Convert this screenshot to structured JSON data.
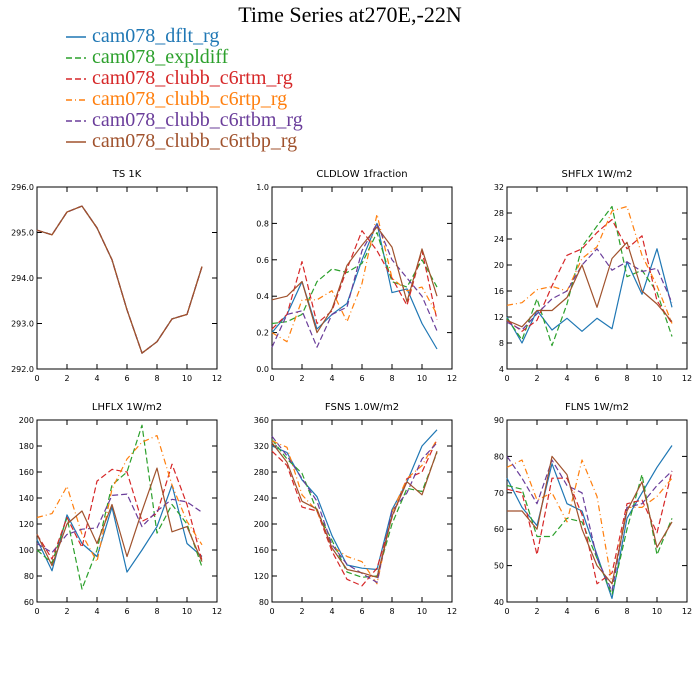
{
  "title": "Time Series at270E,-22N",
  "legend": [
    {
      "name": "cam078_dflt_rg",
      "color": "#1f77b4",
      "dash": ""
    },
    {
      "name": "cam078_expldiff",
      "color": "#2ca02c",
      "dash": "6,3"
    },
    {
      "name": "cam078_clubb_c6rtm_rg",
      "color": "#d62728",
      "dash": "6,3"
    },
    {
      "name": "cam078_clubb_c6rtp_rg",
      "color": "#ff7f0e",
      "dash": "6,3,1,3"
    },
    {
      "name": "cam078_clubb_c6rtbm_rg",
      "color": "#6a3d9a",
      "dash": "6,3"
    },
    {
      "name": "cam078_clubb_c6rtbp_rg",
      "color": "#a0522d",
      "dash": ""
    }
  ],
  "chart_data": [
    {
      "type": "line",
      "title": "TS   1K",
      "x": [
        0,
        1,
        2,
        3,
        4,
        5,
        6,
        7,
        8,
        9,
        10,
        11
      ],
      "xlim": [
        0,
        12
      ],
      "xticks": [
        0,
        2,
        4,
        6,
        8,
        10,
        12
      ],
      "ylim": [
        292.0,
        296.0
      ],
      "yticks": [
        "292.0",
        "293.0",
        "294.0",
        "295.0",
        "296.0"
      ],
      "series": [
        {
          "name": "cam078_dflt_rg",
          "values": [
            295.05,
            294.95,
            295.45,
            295.58,
            295.1,
            294.4,
            293.3,
            292.35,
            292.6,
            293.1,
            293.2,
            294.25
          ]
        },
        {
          "name": "cam078_expldiff",
          "values": [
            295.05,
            294.95,
            295.45,
            295.58,
            295.1,
            294.4,
            293.3,
            292.35,
            292.6,
            293.1,
            293.2,
            294.25
          ]
        },
        {
          "name": "cam078_clubb_c6rtm_rg",
          "values": [
            295.05,
            294.95,
            295.45,
            295.58,
            295.1,
            294.4,
            293.3,
            292.35,
            292.6,
            293.1,
            293.2,
            294.25
          ]
        },
        {
          "name": "cam078_clubb_c6rtp_rg",
          "values": [
            295.05,
            294.95,
            295.45,
            295.58,
            295.1,
            294.4,
            293.3,
            292.35,
            292.6,
            293.1,
            293.2,
            294.25
          ]
        },
        {
          "name": "cam078_clubb_c6rtbm_rg",
          "values": [
            295.05,
            294.95,
            295.45,
            295.58,
            295.1,
            294.4,
            293.3,
            292.35,
            292.6,
            293.1,
            293.2,
            294.25
          ]
        },
        {
          "name": "cam078_clubb_c6rtbp_rg",
          "values": [
            295.05,
            294.95,
            295.45,
            295.58,
            295.1,
            294.4,
            293.3,
            292.35,
            292.6,
            293.1,
            293.2,
            294.25
          ]
        }
      ]
    },
    {
      "type": "line",
      "title": "CLDLOW   1fraction",
      "x": [
        0,
        1,
        2,
        3,
        4,
        5,
        6,
        7,
        8,
        9,
        10,
        11
      ],
      "xlim": [
        0,
        12
      ],
      "xticks": [
        0,
        2,
        4,
        6,
        8,
        10,
        12
      ],
      "ylim": [
        0.0,
        1.0
      ],
      "yticks": [
        "0.0",
        "0.2",
        "0.4",
        "0.6",
        "0.8",
        "1.0"
      ],
      "series": [
        {
          "name": "cam078_dflt_rg",
          "values": [
            0.2,
            0.3,
            0.48,
            0.22,
            0.3,
            0.36,
            0.6,
            0.8,
            0.42,
            0.44,
            0.25,
            0.11
          ]
        },
        {
          "name": "cam078_expldiff",
          "values": [
            0.25,
            0.26,
            0.3,
            0.48,
            0.55,
            0.53,
            0.58,
            0.75,
            0.48,
            0.45,
            0.6,
            0.45
          ]
        },
        {
          "name": "cam078_clubb_c6rtm_rg",
          "values": [
            0.22,
            0.3,
            0.59,
            0.25,
            0.32,
            0.55,
            0.76,
            0.65,
            0.5,
            0.35,
            0.65,
            0.27
          ]
        },
        {
          "name": "cam078_clubb_c6rtp_rg",
          "values": [
            0.2,
            0.15,
            0.38,
            0.38,
            0.43,
            0.26,
            0.47,
            0.85,
            0.5,
            0.43,
            0.45,
            0.3
          ]
        },
        {
          "name": "cam078_clubb_c6rtbm_rg",
          "values": [
            0.12,
            0.3,
            0.32,
            0.12,
            0.3,
            0.34,
            0.65,
            0.8,
            0.6,
            0.5,
            0.4,
            0.21
          ]
        },
        {
          "name": "cam078_clubb_c6rtbp_rg",
          "values": [
            0.38,
            0.4,
            0.48,
            0.2,
            0.33,
            0.57,
            0.68,
            0.78,
            0.67,
            0.37,
            0.66,
            0.4
          ]
        }
      ]
    },
    {
      "type": "line",
      "title": "SHFLX   1W/m2",
      "x": [
        0,
        1,
        2,
        3,
        4,
        5,
        6,
        7,
        8,
        9,
        10,
        11
      ],
      "xlim": [
        0,
        12
      ],
      "xticks": [
        0,
        2,
        4,
        6,
        8,
        10,
        12
      ],
      "ylim": [
        4,
        32
      ],
      "yticks": [
        "4",
        "8",
        "12",
        "16",
        "20",
        "24",
        "28",
        "32"
      ],
      "series": [
        {
          "name": "cam078_dflt_rg",
          "values": [
            12,
            8,
            13,
            10,
            11.8,
            9.8,
            11.8,
            10.2,
            20.5,
            15.5,
            22.5,
            13.5
          ]
        },
        {
          "name": "cam078_expldiff",
          "values": [
            11.8,
            8.5,
            14.8,
            7.6,
            14,
            22.8,
            26,
            29,
            18.2,
            19.2,
            15.8,
            9
          ]
        },
        {
          "name": "cam078_clubb_c6rtm_rg",
          "values": [
            11.5,
            9.8,
            11.5,
            16.8,
            21.5,
            22.5,
            25,
            27,
            22.5,
            24.5,
            14.5,
            11
          ]
        },
        {
          "name": "cam078_clubb_c6rtp_rg",
          "values": [
            13.8,
            14.2,
            16.2,
            16.7,
            16,
            21,
            22.8,
            28.3,
            29,
            21.5,
            16.8,
            11
          ]
        },
        {
          "name": "cam078_clubb_c6rtbm_rg",
          "values": [
            11.2,
            10,
            12.5,
            14.8,
            16,
            20,
            22.5,
            19.2,
            20.5,
            19,
            19.5,
            14.2
          ]
        },
        {
          "name": "cam078_clubb_c6rtbp_rg",
          "values": [
            11.5,
            10.5,
            13,
            13,
            15,
            20,
            13.5,
            21,
            23.5,
            16,
            14,
            11.3
          ]
        }
      ]
    },
    {
      "type": "line",
      "title": "LHFLX   1W/m2",
      "x": [
        0,
        1,
        2,
        3,
        4,
        5,
        6,
        7,
        8,
        9,
        10,
        11
      ],
      "xlim": [
        0,
        12
      ],
      "xticks": [
        0,
        2,
        4,
        6,
        8,
        10,
        12
      ],
      "ylim": [
        60,
        200
      ],
      "yticks": [
        "60",
        "80",
        "100",
        "120",
        "140",
        "160",
        "180",
        "200"
      ],
      "series": [
        {
          "name": "cam078_dflt_rg",
          "values": [
            108,
            84,
            127,
            105,
            95,
            133,
            83,
            100,
            118,
            150,
            105,
            95
          ]
        },
        {
          "name": "cam078_expldiff",
          "values": [
            100,
            90,
            125,
            70,
            100,
            150,
            160,
            196,
            113,
            135,
            120,
            87
          ]
        },
        {
          "name": "cam078_clubb_c6rtm_rg",
          "values": [
            112,
            93,
            125,
            102,
            153,
            162,
            160,
            122,
            128,
            166,
            135,
            92
          ]
        },
        {
          "name": "cam078_clubb_c6rtp_rg",
          "values": [
            125,
            128,
            149,
            112,
            91,
            147,
            170,
            183,
            188,
            150,
            122,
            104
          ]
        },
        {
          "name": "cam078_clubb_c6rtbm_rg",
          "values": [
            105,
            98,
            112,
            116,
            117,
            142,
            143,
            118,
            130,
            139,
            137,
            129
          ]
        },
        {
          "name": "cam078_clubb_c6rtbp_rg",
          "values": [
            112,
            88,
            120,
            130,
            105,
            135,
            95,
            130,
            163,
            114,
            118,
            91
          ]
        }
      ]
    },
    {
      "type": "line",
      "title": "FSNS   1.0W/m2",
      "x": [
        0,
        1,
        2,
        3,
        4,
        5,
        6,
        7,
        8,
        9,
        10,
        11
      ],
      "xlim": [
        0,
        12
      ],
      "xticks": [
        0,
        2,
        4,
        6,
        8,
        10,
        12
      ],
      "ylim": [
        80,
        360
      ],
      "yticks": [
        "80",
        "120",
        "160",
        "200",
        "240",
        "280",
        "320",
        "360"
      ],
      "series": [
        {
          "name": "cam078_dflt_rg",
          "values": [
            320,
            310,
            268,
            242,
            182,
            137,
            132,
            130,
            222,
            265,
            320,
            345
          ]
        },
        {
          "name": "cam078_expldiff",
          "values": [
            330,
            300,
            278,
            220,
            175,
            126,
            118,
            120,
            200,
            255,
            250,
            310
          ]
        },
        {
          "name": "cam078_clubb_c6rtm_rg",
          "values": [
            312,
            290,
            226,
            220,
            158,
            115,
            105,
            132,
            210,
            270,
            280,
            330
          ]
        },
        {
          "name": "cam078_clubb_c6rtp_rg",
          "values": [
            328,
            318,
            245,
            220,
            166,
            150,
            142,
            108,
            218,
            270,
            290,
            330
          ]
        },
        {
          "name": "cam078_clubb_c6rtbm_rg",
          "values": [
            335,
            305,
            270,
            235,
            168,
            138,
            124,
            110,
            220,
            248,
            300,
            325
          ]
        },
        {
          "name": "cam078_clubb_c6rtbp_rg",
          "values": [
            325,
            295,
            235,
            223,
            163,
            130,
            125,
            118,
            212,
            265,
            245,
            312
          ]
        }
      ]
    },
    {
      "type": "line",
      "title": "FLNS   1W/m2",
      "x": [
        0,
        1,
        2,
        3,
        4,
        5,
        6,
        7,
        8,
        9,
        10,
        11
      ],
      "xlim": [
        0,
        12
      ],
      "xticks": [
        0,
        2,
        4,
        6,
        8,
        10,
        12
      ],
      "ylim": [
        40,
        90
      ],
      "yticks": [
        "40",
        "50",
        "60",
        "70",
        "80",
        "90"
      ],
      "series": [
        {
          "name": "cam078_dflt_rg",
          "values": [
            74,
            66,
            61,
            78,
            67,
            65,
            53,
            41,
            63,
            70,
            77,
            83
          ]
        },
        {
          "name": "cam078_expldiff",
          "values": [
            72,
            71,
            58,
            58,
            63,
            62,
            52,
            42,
            60,
            75,
            53,
            63
          ]
        },
        {
          "name": "cam078_clubb_c6rtm_rg",
          "values": [
            71,
            70,
            53,
            74,
            74,
            64,
            45,
            48,
            67,
            68,
            59,
            76
          ]
        },
        {
          "name": "cam078_clubb_c6rtp_rg",
          "values": [
            77,
            79,
            68,
            70,
            62,
            79,
            69,
            45,
            66,
            66,
            69,
            74
          ]
        },
        {
          "name": "cam078_clubb_c6rtbm_rg",
          "values": [
            80,
            74,
            67,
            79,
            72,
            70,
            52,
            43,
            66,
            67,
            72,
            76
          ]
        },
        {
          "name": "cam078_clubb_c6rtbp_rg",
          "values": [
            65,
            65,
            60,
            80,
            75,
            60,
            50,
            45,
            65,
            73,
            55,
            62
          ]
        }
      ]
    }
  ]
}
